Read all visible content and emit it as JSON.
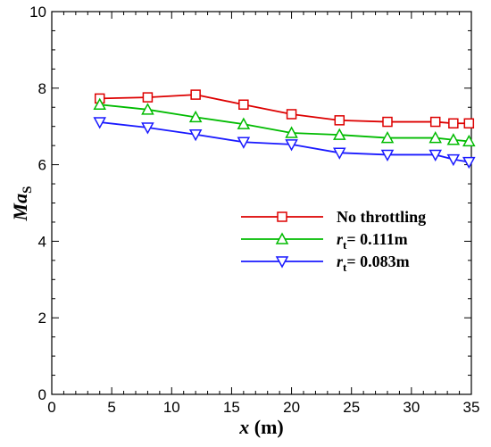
{
  "chart_data": {
    "type": "line",
    "xlabel": {
      "main": "x",
      "unit": " (m)"
    },
    "ylabel": {
      "main": "Ma",
      "sub": "S"
    },
    "xlim": [
      0,
      35
    ],
    "ylim": [
      0,
      10
    ],
    "xticks": [
      "0",
      "5",
      "10",
      "15",
      "20",
      "25",
      "30",
      "35"
    ],
    "yticks": [
      "0",
      "2",
      "4",
      "6",
      "8",
      "10"
    ],
    "grid": false,
    "legend_position": "center-right",
    "series": [
      {
        "name": "No throttling",
        "name_main": "No throttling",
        "name_sub": "",
        "name_rest": "",
        "color": "#dd0000",
        "marker": "square",
        "x": [
          4,
          8,
          12,
          16,
          20,
          24,
          28,
          32,
          33.5,
          34.8
        ],
        "y": [
          7.73,
          7.76,
          7.83,
          7.57,
          7.32,
          7.16,
          7.12,
          7.12,
          7.08,
          7.08
        ]
      },
      {
        "name": "rt= 0.111m",
        "name_main": "r",
        "name_sub": "t",
        "name_rest": "= 0.111m",
        "color": "#00bb00",
        "marker": "triangle-up",
        "x": [
          4,
          8,
          12,
          16,
          20,
          24,
          28,
          32,
          33.5,
          34.8
        ],
        "y": [
          7.57,
          7.44,
          7.24,
          7.06,
          6.83,
          6.78,
          6.7,
          6.7,
          6.65,
          6.61
        ]
      },
      {
        "name": "rt= 0.083m",
        "name_main": "r",
        "name_sub": "t",
        "name_rest": "= 0.083m",
        "color": "#1a1aff",
        "marker": "triangle-down",
        "x": [
          4,
          8,
          12,
          16,
          20,
          24,
          28,
          32,
          33.5,
          34.8
        ],
        "y": [
          7.11,
          6.97,
          6.79,
          6.59,
          6.53,
          6.31,
          6.26,
          6.26,
          6.14,
          6.07
        ]
      }
    ]
  }
}
